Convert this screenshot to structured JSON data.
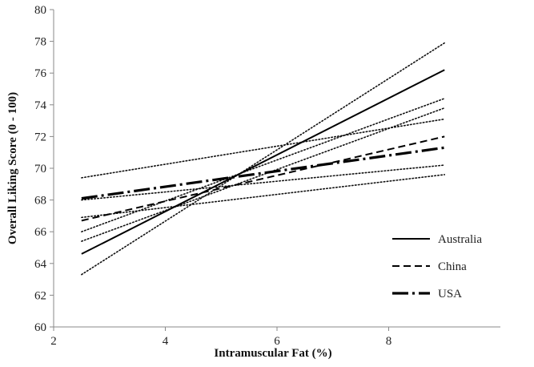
{
  "chart_data": {
    "type": "line",
    "title": "",
    "xlabel": "Intramuscular Fat (%)",
    "ylabel": "Overall Liking Score (0 - 100)",
    "xlim": [
      2,
      10
    ],
    "ylim": [
      60,
      80
    ],
    "xticks": [
      2,
      4,
      6,
      8
    ],
    "yticks": [
      60,
      62,
      64,
      66,
      68,
      70,
      72,
      74,
      76,
      78,
      80
    ],
    "legend_position": "bottom-right",
    "series": [
      {
        "name": "Australia",
        "style": "solid",
        "x": [
          2.5,
          9.0
        ],
        "y": [
          64.6,
          76.2
        ]
      },
      {
        "name": "China",
        "style": "dashed",
        "x": [
          2.5,
          9.0
        ],
        "y": [
          66.7,
          72.0
        ]
      },
      {
        "name": "USA",
        "style": "dash-dot",
        "x": [
          2.5,
          9.0
        ],
        "y": [
          68.1,
          71.3
        ]
      }
    ],
    "confidence_bands": [
      {
        "of": "Australia",
        "x": [
          2.5,
          9.0
        ],
        "y": [
          63.3,
          77.9
        ]
      },
      {
        "of": "Australia",
        "x": [
          2.5,
          9.0
        ],
        "y": [
          66.0,
          74.4
        ]
      },
      {
        "of": "China",
        "x": [
          2.5,
          9.0
        ],
        "y": [
          65.4,
          73.8
        ]
      },
      {
        "of": "China",
        "x": [
          2.5,
          9.0
        ],
        "y": [
          68.0,
          70.2
        ]
      },
      {
        "of": "USA",
        "x": [
          2.5,
          9.0
        ],
        "y": [
          69.4,
          73.1
        ]
      },
      {
        "of": "USA",
        "x": [
          2.5,
          9.0
        ],
        "y": [
          66.9,
          69.6
        ]
      }
    ]
  }
}
